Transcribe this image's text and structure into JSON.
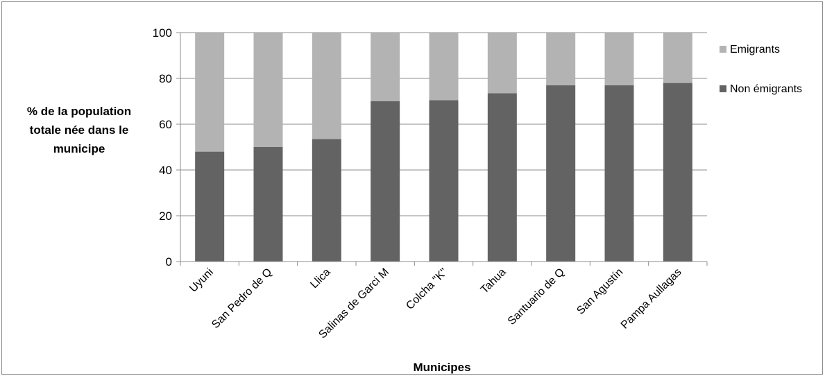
{
  "chart_data": {
    "type": "bar",
    "stacked": true,
    "categories": [
      "Uyuni",
      "San Pedro de Q",
      "Llica",
      "Salinas de Garci M",
      "Colcha \"K\"",
      "Tahua",
      "Santuario de Q",
      "San Agustín",
      "Pampa Aullagas"
    ],
    "series": [
      {
        "name": "Non émigrants",
        "color": "#636363",
        "values": [
          48,
          50,
          53.5,
          70,
          70.5,
          73.5,
          77,
          77,
          78
        ]
      },
      {
        "name": "Emigrants",
        "color": "#b3b3b3",
        "values": [
          52,
          50,
          46.5,
          30,
          29.5,
          26.5,
          23,
          23,
          22
        ]
      }
    ],
    "ylabel_lines": [
      "% de la population",
      "totale née dans le",
      "municipe"
    ],
    "xlabel": "Municipes",
    "ylim": [
      0,
      100
    ],
    "yticks": [
      0,
      20,
      40,
      60,
      80,
      100
    ],
    "grid": true,
    "legend": {
      "position": "right",
      "order": [
        "Emigrants",
        "Non émigrants"
      ]
    }
  }
}
